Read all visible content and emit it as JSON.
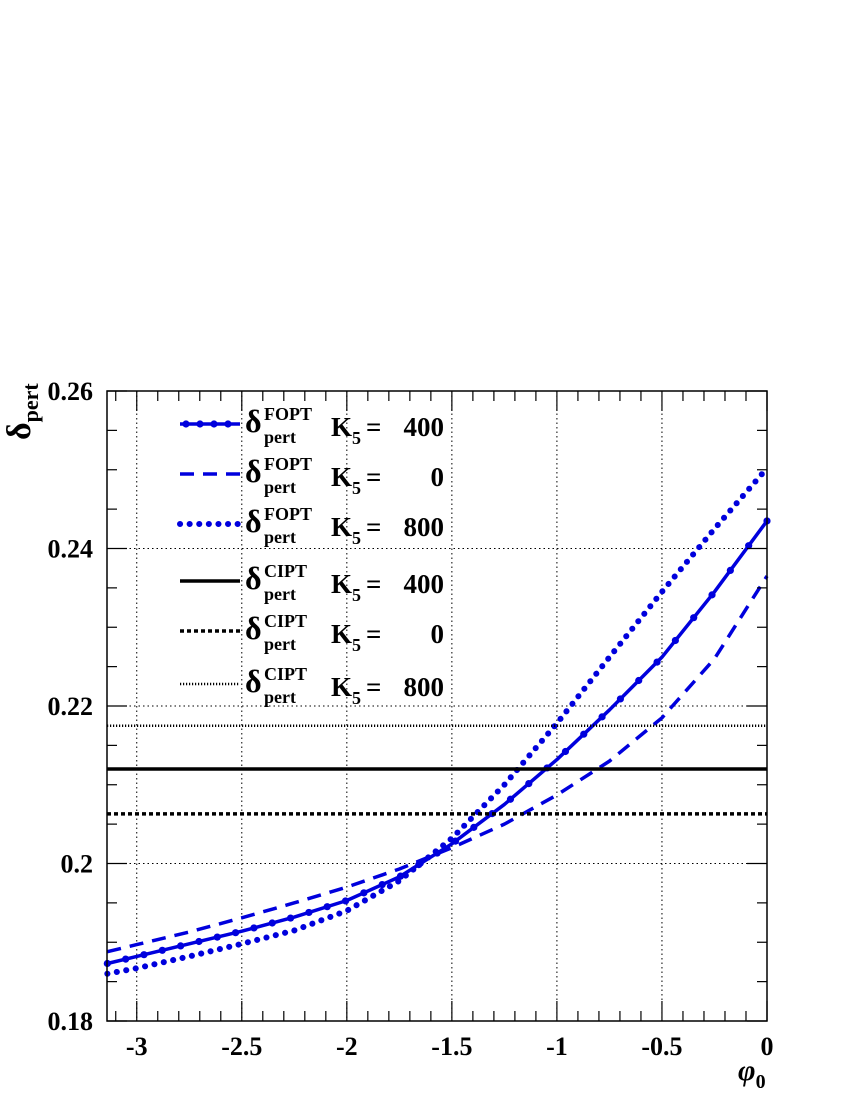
{
  "chart_data": {
    "type": "line",
    "xlabel": {
      "main": "φ",
      "sub": "0"
    },
    "ylabel": {
      "main": "δ",
      "sub": "pert"
    },
    "xlim": [
      -3.14159,
      0
    ],
    "ylim": [
      0.18,
      0.26
    ],
    "grid": true,
    "legend_position": "top-left",
    "x_ticks": [
      {
        "value": -3,
        "label": "-3"
      },
      {
        "value": -2.5,
        "label": "-2.5"
      },
      {
        "value": -2,
        "label": "-2"
      },
      {
        "value": -1.5,
        "label": "-1.5"
      },
      {
        "value": -1,
        "label": "-1"
      },
      {
        "value": -0.5,
        "label": "-0.5"
      },
      {
        "value": 0,
        "label": "0"
      }
    ],
    "y_ticks": [
      {
        "value": 0.18,
        "label": "0.18"
      },
      {
        "value": 0.2,
        "label": "0.2"
      },
      {
        "value": 0.22,
        "label": "0.22"
      },
      {
        "value": 0.24,
        "label": "0.24"
      },
      {
        "value": 0.26,
        "label": "0.26"
      }
    ],
    "series": [
      {
        "legend_symbol": "δ",
        "legend_sub": "pert",
        "legend_sup": "FOPT",
        "k_label": "K",
        "k_sub": "5",
        "k_value": "400",
        "color": "#0000dd",
        "style": "dash-dot-marker",
        "x": [
          -3.14,
          -3.0,
          -2.75,
          -2.5,
          -2.25,
          -2.0,
          -1.75,
          -1.5,
          -1.25,
          -1.0,
          -0.75,
          -0.5,
          -0.25,
          0.0
        ],
        "y": [
          0.1873,
          0.1882,
          0.1898,
          0.1914,
          0.1932,
          0.1953,
          0.1983,
          0.2025,
          0.2075,
          0.2132,
          0.2195,
          0.2262,
          0.2345,
          0.2435
        ]
      },
      {
        "legend_symbol": "δ",
        "legend_sub": "pert",
        "legend_sup": "FOPT",
        "k_label": "K",
        "k_sub": "5",
        "k_value": "0",
        "color": "#0000dd",
        "style": "dashed",
        "x": [
          -3.14,
          -3.0,
          -2.75,
          -2.5,
          -2.25,
          -2.0,
          -1.75,
          -1.5,
          -1.25,
          -1.0,
          -0.75,
          -0.5,
          -0.25,
          0.0
        ],
        "y": [
          0.1888,
          0.1897,
          0.1913,
          0.1931,
          0.195,
          0.197,
          0.1993,
          0.202,
          0.205,
          0.2087,
          0.213,
          0.2185,
          0.226,
          0.2365
        ]
      },
      {
        "legend_symbol": "δ",
        "legend_sub": "pert",
        "legend_sup": "FOPT",
        "k_label": "K",
        "k_sub": "5",
        "k_value": "800",
        "color": "#0000dd",
        "style": "dotted",
        "x": [
          -3.14,
          -3.0,
          -2.75,
          -2.5,
          -2.25,
          -2.0,
          -1.75,
          -1.5,
          -1.25,
          -1.0,
          -0.75,
          -0.5,
          -0.25,
          0.0
        ],
        "y": [
          0.186,
          0.1867,
          0.1882,
          0.1898,
          0.1915,
          0.194,
          0.1978,
          0.2032,
          0.21,
          0.2178,
          0.2262,
          0.2345,
          0.2425,
          0.2502
        ]
      },
      {
        "legend_symbol": "δ",
        "legend_sub": "pert",
        "legend_sup": "CIPT",
        "k_label": "K",
        "k_sub": "5",
        "k_value": "400",
        "color": "#000000",
        "style": "solid",
        "x": [
          -3.14159,
          0
        ],
        "y": [
          0.212,
          0.212
        ]
      },
      {
        "legend_symbol": "δ",
        "legend_sub": "pert",
        "legend_sup": "CIPT",
        "k_label": "K",
        "k_sub": "5",
        "k_value": "0",
        "color": "#000000",
        "style": "dashed-fine",
        "x": [
          -3.14159,
          0
        ],
        "y": [
          0.2063,
          0.2063
        ]
      },
      {
        "legend_symbol": "δ",
        "legend_sub": "pert",
        "legend_sup": "CIPT",
        "k_label": "K",
        "k_sub": "5",
        "k_value": "800",
        "color": "#000000",
        "style": "dotted-fine",
        "x": [
          -3.14159,
          0
        ],
        "y": [
          0.2175,
          0.2175
        ]
      }
    ]
  }
}
